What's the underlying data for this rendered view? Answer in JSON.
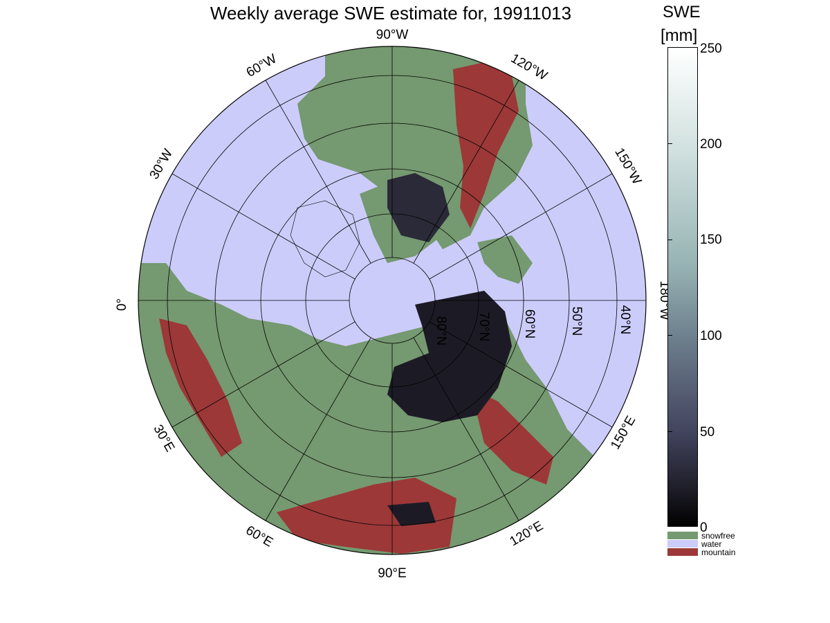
{
  "title": "Weekly average SWE estimate for, 19911013",
  "colorbar": {
    "label": "SWE",
    "unit": "[mm]",
    "ticks": [
      "250",
      "200",
      "150",
      "100",
      "50",
      "0"
    ],
    "range": [
      0,
      250
    ]
  },
  "categories": [
    {
      "label": "snowfree",
      "color": "#759970"
    },
    {
      "label": "water",
      "color": "#ccccfb"
    },
    {
      "label": "mountain",
      "color": "#9c3838"
    }
  ],
  "colors": {
    "water": "#ccccfb",
    "land": "#759970",
    "mountain": "#9c3838",
    "snow_dark": "#1c1b25"
  },
  "map": {
    "projection": "north polar stereographic",
    "longitude_labels": [
      "90°W",
      "120°W",
      "150°W",
      "180°W",
      "150°E",
      "120°E",
      "90°E",
      "60°E",
      "30°E",
      "0°",
      "30°W",
      "60°W"
    ],
    "latitude_labels": [
      "80°N",
      "70°N",
      "60°N",
      "50°N",
      "40°N"
    ]
  }
}
